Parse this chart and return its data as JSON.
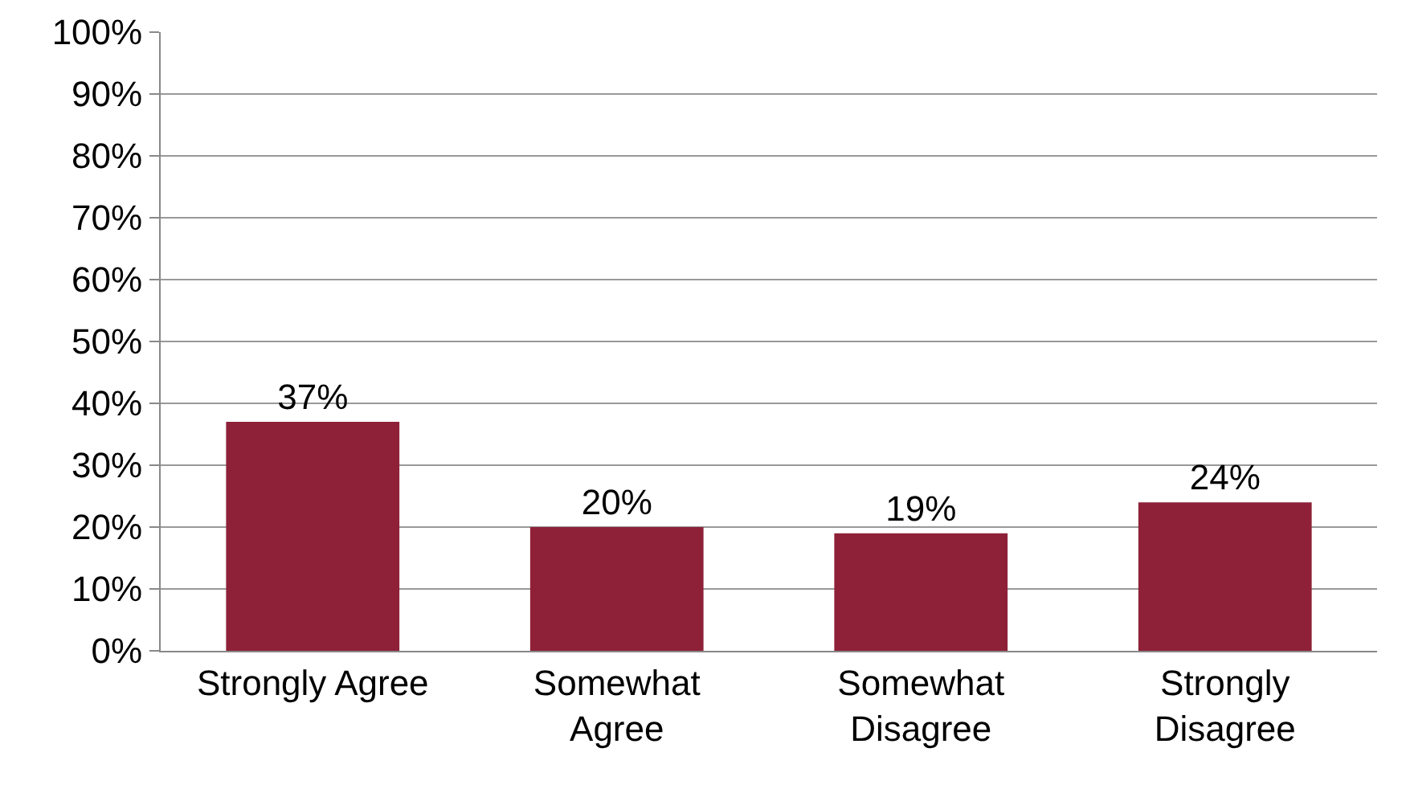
{
  "chart_data": {
    "type": "bar",
    "categories": [
      "Strongly Agree",
      "Somewhat\nAgree",
      "Somewhat\nDisagree",
      "Strongly\nDisagree"
    ],
    "values": [
      37,
      20,
      19,
      24
    ],
    "color": "#8e2138",
    "value_labels": [
      "37%",
      "20%",
      "19%",
      "24%"
    ],
    "ylim": [
      0,
      100
    ],
    "yticks": [
      {
        "value": 0,
        "label": "0%"
      },
      {
        "value": 10,
        "label": "10%"
      },
      {
        "value": 20,
        "label": "20%"
      },
      {
        "value": 30,
        "label": "30%"
      },
      {
        "value": 40,
        "label": "40%"
      },
      {
        "value": 50,
        "label": "50%"
      },
      {
        "value": 60,
        "label": "60%"
      },
      {
        "value": 70,
        "label": "70%"
      },
      {
        "value": 80,
        "label": "80%"
      },
      {
        "value": 90,
        "label": "90%"
      },
      {
        "value": 100,
        "label": "100%"
      }
    ],
    "grid": "y",
    "legend": false
  }
}
